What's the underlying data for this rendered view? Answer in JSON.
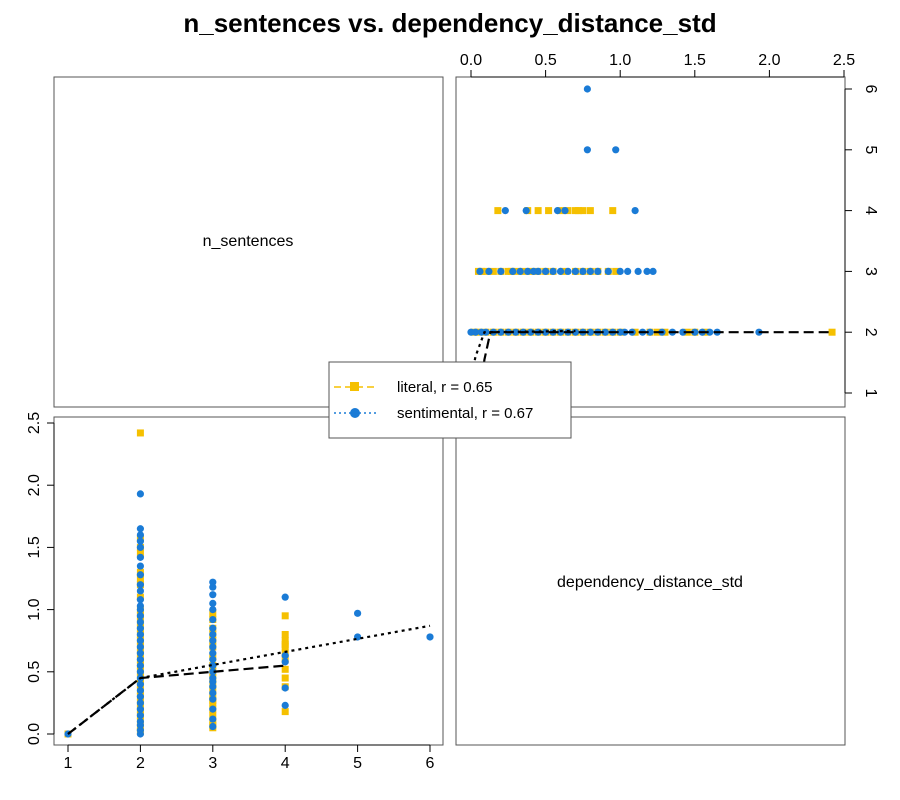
{
  "chart_data": {
    "type": "scatter",
    "title": "n_sentences vs. dependency_distance_std",
    "variables": [
      "n_sentences",
      "dependency_distance_std"
    ],
    "x_axis_top": {
      "range": [
        0,
        2.5
      ],
      "ticks": [
        "0.0",
        "0.5",
        "1.0",
        "1.5",
        "2.0",
        "2.5"
      ]
    },
    "y_axis_right": {
      "range": [
        1,
        6
      ],
      "ticks": [
        "1",
        "2",
        "3",
        "4",
        "5",
        "6"
      ]
    },
    "x_axis_bottom": {
      "range": [
        1,
        6
      ],
      "ticks": [
        "1",
        "2",
        "3",
        "4",
        "5",
        "6"
      ]
    },
    "y_axis_left": {
      "range": [
        0,
        2.5
      ],
      "ticks": [
        "0.0",
        "0.5",
        "1.0",
        "1.5",
        "2.0",
        "2.5"
      ]
    },
    "legend": {
      "placement": "center",
      "entries": [
        {
          "label": "literal, r = 0.65",
          "color": "#F5C000",
          "marker": "square",
          "line": "dashed"
        },
        {
          "label": "sentimental, r = 0.67",
          "color": "#1A7BD6",
          "marker": "circle",
          "line": "dotted"
        }
      ]
    },
    "series": [
      {
        "group": "literal",
        "color": "#F5C000",
        "marker": "square",
        "n_sentences": [
          1,
          2,
          2,
          2,
          2,
          2,
          2,
          2,
          2,
          2,
          2,
          2,
          2,
          2,
          2,
          2,
          2,
          2,
          2,
          2,
          2,
          2,
          2,
          2,
          2,
          2,
          2,
          2,
          2,
          2,
          3,
          3,
          3,
          3,
          3,
          3,
          3,
          3,
          3,
          3,
          3,
          3,
          3,
          3,
          3,
          3,
          3,
          3,
          3,
          3,
          4,
          4,
          4,
          4,
          4,
          4,
          4,
          4,
          4,
          4,
          4
        ],
        "dependency_distance_std": [
          0,
          2.42,
          1.57,
          1.5,
          1.45,
          1.3,
          1.25,
          1.2,
          1.1,
          1.0,
          0.95,
          0.9,
          0.85,
          0.8,
          0.75,
          0.7,
          0.65,
          0.6,
          0.55,
          0.5,
          0.45,
          0.4,
          0.35,
          0.3,
          0.25,
          0.2,
          0.15,
          0.1,
          0.05,
          0.02,
          0.97,
          0.92,
          0.85,
          0.8,
          0.75,
          0.7,
          0.62,
          0.55,
          0.5,
          0.45,
          0.4,
          0.35,
          0.3,
          0.27,
          0.25,
          0.2,
          0.15,
          0.1,
          0.07,
          0.05,
          0.95,
          0.8,
          0.75,
          0.72,
          0.7,
          0.65,
          0.6,
          0.52,
          0.45,
          0.38,
          0.18
        ]
      },
      {
        "group": "sentimental",
        "color": "#1A7BD6",
        "marker": "circle",
        "n_sentences": [
          1,
          2,
          2,
          2,
          2,
          2,
          2,
          2,
          2,
          2,
          2,
          2,
          2,
          2,
          2,
          2,
          2,
          2,
          2,
          2,
          2,
          2,
          2,
          2,
          2,
          2,
          2,
          2,
          2,
          2,
          2,
          2,
          2,
          2,
          2,
          3,
          3,
          3,
          3,
          3,
          3,
          3,
          3,
          3,
          3,
          3,
          3,
          3,
          3,
          3,
          3,
          3,
          3,
          3,
          3,
          3,
          3,
          4,
          4,
          4,
          4,
          4,
          5,
          5,
          6
        ],
        "dependency_distance_std": [
          0,
          1.93,
          1.65,
          1.6,
          1.55,
          1.5,
          1.42,
          1.35,
          1.28,
          1.2,
          1.15,
          1.08,
          1.03,
          1.0,
          0.95,
          0.9,
          0.85,
          0.8,
          0.75,
          0.7,
          0.65,
          0.6,
          0.55,
          0.5,
          0.45,
          0.4,
          0.35,
          0.3,
          0.25,
          0.2,
          0.15,
          0.1,
          0.07,
          0.03,
          0.0,
          1.22,
          1.18,
          1.12,
          1.05,
          1.0,
          0.92,
          0.85,
          0.8,
          0.75,
          0.7,
          0.65,
          0.6,
          0.55,
          0.5,
          0.45,
          0.42,
          0.38,
          0.33,
          0.28,
          0.2,
          0.12,
          0.06,
          1.1,
          0.63,
          0.58,
          0.37,
          0.23,
          0.97,
          0.78,
          0.78
        ]
      }
    ],
    "trend_lines": [
      {
        "group": "literal",
        "style": "dashed",
        "n_sentences": [
          1,
          2,
          3,
          4
        ],
        "dependency_distance_std": [
          0,
          0.45,
          0.5,
          0.55
        ]
      },
      {
        "group": "sentimental",
        "style": "dotted",
        "n_sentences": [
          1,
          2,
          6
        ],
        "dependency_distance_std": [
          0,
          0.45,
          0.87
        ]
      }
    ]
  }
}
